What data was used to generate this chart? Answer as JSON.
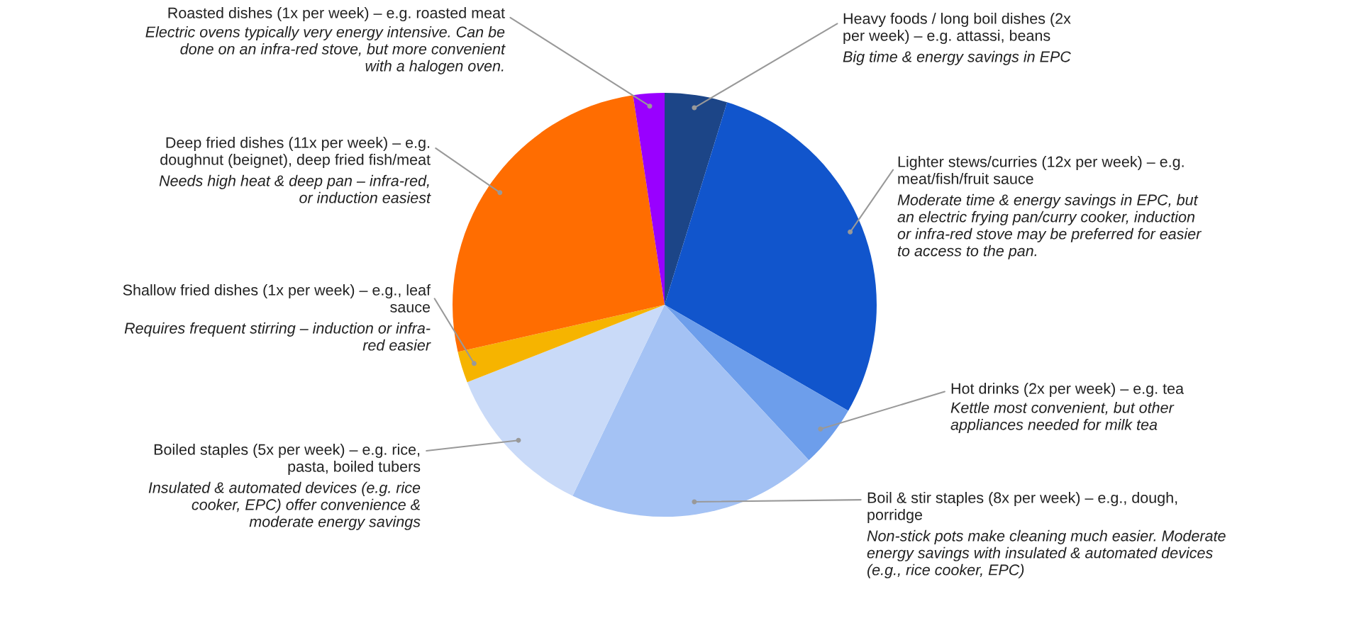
{
  "chart_data": {
    "type": "pie",
    "categories": [
      "Heavy foods / long boil dishes (2x\nper week) – e.g. attassi, beans",
      "Lighter stews/curries (12x per week) – e.g.\nmeat/fish/fruit sauce",
      "Hot drinks (2x per week) – e.g. tea",
      "Boil & stir staples (8x per week) – e.g., dough,\nporridge",
      "Boiled staples (5x per week) – e.g. rice,\npasta, boiled tubers",
      "Shallow fried dishes (1x per week) – e.g., leaf\nsauce",
      "Deep fried dishes (11x per week) – e.g.\ndoughnut (beignet), deep fried fish/meat",
      "Roasted dishes (1x per week) – e.g. roasted meat"
    ],
    "values": [
      2,
      12,
      2,
      8,
      5,
      1,
      11,
      1
    ],
    "colors": [
      "#1c4587",
      "#1155cc",
      "#6d9eeb",
      "#a4c2f4",
      "#c9daf8",
      "#f6b400",
      "#ff6d01",
      "#9900ff"
    ],
    "annotations": [
      "Big time & energy savings in EPC",
      "Moderate time & energy savings in EPC, but\nan electric frying pan/curry cooker, induction\nor infra-red stove may be preferred for easier\nto access to the pan.",
      "Kettle most convenient, but other\nappliances needed for milk tea",
      "Non-stick pots make cleaning much easier. Moderate\nenergy savings with insulated & automated devices\n(e.g., rice cooker, EPC)",
      "Insulated & automated devices (e.g. rice\ncooker, EPC) offer convenience &\nmoderate energy savings",
      "Requires frequent stirring – induction or infra-\nred easier",
      "Needs high heat & deep pan – infra-red,\nor induction easiest",
      "Electric ovens typically very energy intensive. Can be\ndone on an infra-red stove, but more convenient\nwith a halogen oven."
    ]
  }
}
